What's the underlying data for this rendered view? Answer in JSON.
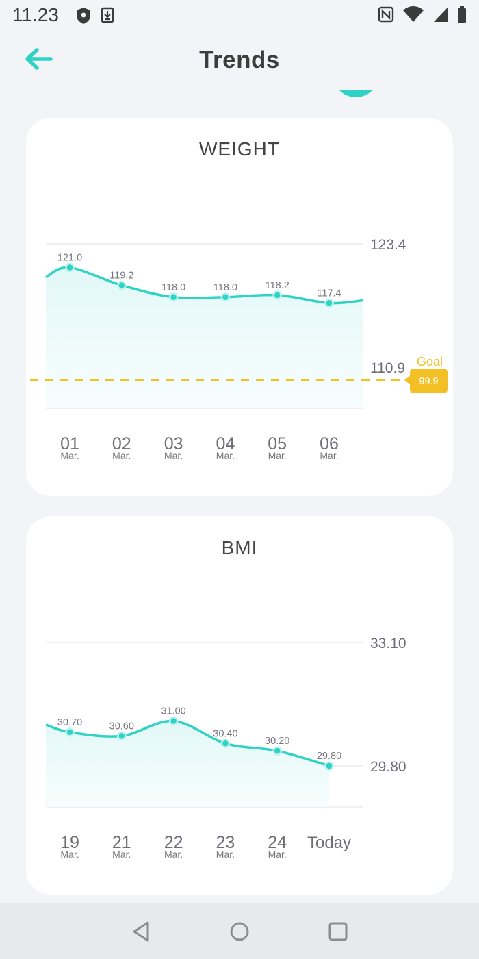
{
  "status_bar": {
    "time": "11.23",
    "icons_left": [
      "shield-icon",
      "download-icon"
    ],
    "icons_right": [
      "nfc-icon",
      "wifi-icon",
      "signal-icon",
      "battery-icon"
    ]
  },
  "header": {
    "title": "Trends",
    "back_icon": "arrow-left-icon",
    "accent_color": "#2ed3c6"
  },
  "cards": {
    "weight": {
      "title": "WEIGHT"
    },
    "bmi": {
      "title": "BMI"
    }
  },
  "chart_data": [
    {
      "type": "line",
      "title": "WEIGHT",
      "x_labels": [
        {
          "day": "01",
          "month": "Mar."
        },
        {
          "day": "02",
          "month": "Mar."
        },
        {
          "day": "03",
          "month": "Mar."
        },
        {
          "day": "04",
          "month": "Mar."
        },
        {
          "day": "05",
          "month": "Mar."
        },
        {
          "day": "06",
          "month": "Mar."
        }
      ],
      "values": [
        121.0,
        119.2,
        118.0,
        118.0,
        118.2,
        117.4
      ],
      "value_labels": [
        "121.0",
        "119.2",
        "118.0",
        "118.0",
        "118.2",
        "117.4"
      ],
      "y_ticks": [
        "123.4",
        "110.9"
      ],
      "y_tick_values": [
        123.4,
        110.9
      ],
      "goal": {
        "label": "Goal",
        "value": 99.9,
        "value_label": "99.9",
        "color": "#f2c025"
      },
      "line_color": "#2ed3c6"
    },
    {
      "type": "line",
      "title": "BMI",
      "x_labels": [
        {
          "day": "19",
          "month": "Mar."
        },
        {
          "day": "21",
          "month": "Mar."
        },
        {
          "day": "22",
          "month": "Mar."
        },
        {
          "day": "23",
          "month": "Mar."
        },
        {
          "day": "24",
          "month": "Mar."
        },
        {
          "day": "Today",
          "month": ""
        }
      ],
      "values": [
        30.7,
        30.6,
        31.0,
        30.4,
        30.2,
        29.8
      ],
      "value_labels": [
        "30.70",
        "30.60",
        "31.00",
        "30.40",
        "30.20",
        "29.80"
      ],
      "y_ticks": [
        "33.10",
        "29.80"
      ],
      "y_tick_values": [
        33.1,
        29.8
      ],
      "line_color": "#2ed3c6"
    }
  ],
  "nav_bar": {
    "buttons": [
      "back-triangle-icon",
      "home-circle-icon",
      "recents-square-icon"
    ]
  }
}
